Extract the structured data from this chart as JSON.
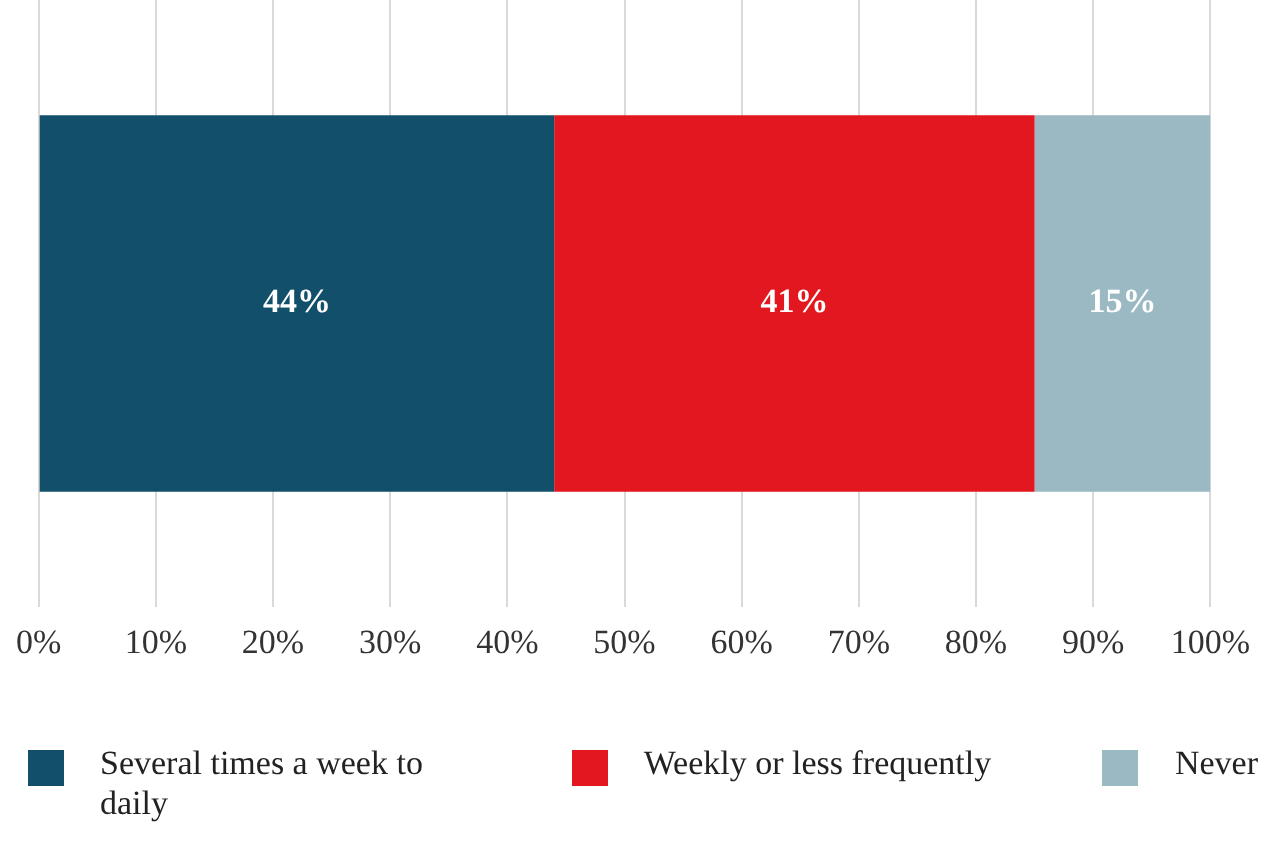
{
  "chart_data": {
    "type": "bar",
    "orientation": "horizontal",
    "stacked": true,
    "categories": [
      null
    ],
    "series": [
      {
        "name": "Several times a week to daily",
        "color": "#124f6b",
        "values": [
          44
        ],
        "value_labels": [
          "44%"
        ]
      },
      {
        "name": "Weekly or less frequently",
        "color": "#e3171f",
        "values": [
          41
        ],
        "value_labels": [
          "41%"
        ]
      },
      {
        "name": "Never",
        "color": "#9bb9c3",
        "values": [
          15
        ],
        "value_labels": [
          "15%"
        ]
      }
    ],
    "xlim": [
      0,
      100
    ],
    "xticks": [
      {
        "value": 0,
        "label": "0%"
      },
      {
        "value": 10,
        "label": "10%"
      },
      {
        "value": 20,
        "label": "20%"
      },
      {
        "value": 30,
        "label": "30%"
      },
      {
        "value": 40,
        "label": "40%"
      },
      {
        "value": 50,
        "label": "50%"
      },
      {
        "value": 60,
        "label": "60%"
      },
      {
        "value": 70,
        "label": "70%"
      },
      {
        "value": 80,
        "label": "80%"
      },
      {
        "value": 90,
        "label": "90%"
      },
      {
        "value": 100,
        "label": "100%"
      }
    ],
    "grid": "x",
    "legend": "bottom"
  }
}
